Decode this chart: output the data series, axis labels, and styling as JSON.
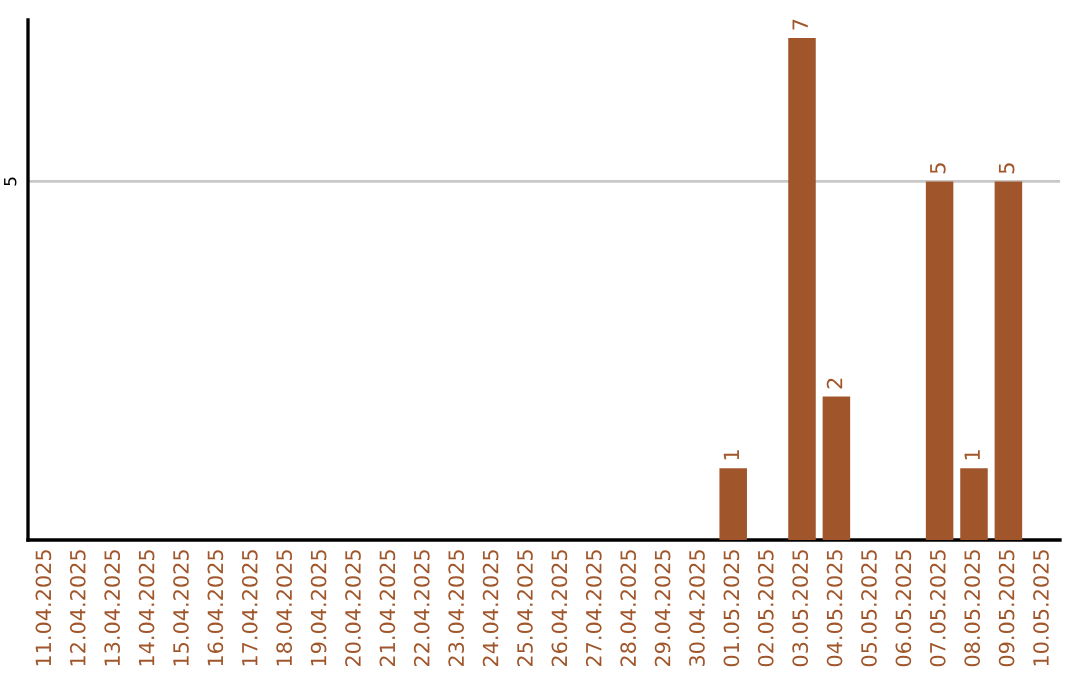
{
  "chart_data": {
    "type": "bar",
    "categories": [
      "11.04.2025",
      "12.04.2025",
      "13.04.2025",
      "14.04.2025",
      "15.04.2025",
      "16.04.2025",
      "17.04.2025",
      "18.04.2025",
      "19.04.2025",
      "20.04.2025",
      "21.04.2025",
      "22.04.2025",
      "23.04.2025",
      "24.04.2025",
      "25.04.2025",
      "26.04.2025",
      "27.04.2025",
      "28.04.2025",
      "29.04.2025",
      "30.04.2025",
      "01.05.2025",
      "02.05.2025",
      "03.05.2025",
      "04.05.2025",
      "05.05.2025",
      "06.05.2025",
      "07.05.2025",
      "08.05.2025",
      "09.05.2025",
      "10.05.2025"
    ],
    "values": [
      null,
      null,
      null,
      null,
      null,
      null,
      null,
      null,
      null,
      null,
      null,
      null,
      null,
      null,
      null,
      null,
      null,
      null,
      null,
      null,
      1,
      null,
      7,
      2,
      null,
      null,
      5,
      1,
      5,
      null
    ],
    "color": "#a0562a",
    "ylim": [
      0,
      7.25
    ],
    "yticks": [
      5
    ],
    "grid": "y",
    "data_labels": true
  }
}
